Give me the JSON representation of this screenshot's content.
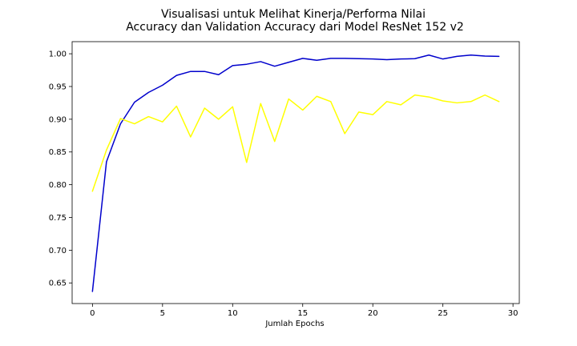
{
  "chart_data": {
    "type": "line",
    "title_lines": [
      "Visualisasi untuk Melihat Kinerja/Performa Nilai",
      "Accuracy dan Validation Accuracy dari Model ResNet 152 v2"
    ],
    "xlabel": "Jumlah Epochs",
    "ylabel": "",
    "xlim": [
      -1.45,
      30.45
    ],
    "ylim": [
      0.6185,
      1.0185
    ],
    "xticks": [
      0,
      5,
      10,
      15,
      20,
      25,
      30
    ],
    "yticks": [
      0.65,
      0.7,
      0.75,
      0.8,
      0.85,
      0.9,
      0.95,
      1.0
    ],
    "grid": false,
    "legend": "none",
    "x": [
      0,
      1,
      2,
      3,
      4,
      5,
      6,
      7,
      8,
      9,
      10,
      11,
      12,
      13,
      14,
      15,
      16,
      17,
      18,
      19,
      20,
      21,
      22,
      23,
      24,
      25,
      26,
      27,
      28,
      29
    ],
    "series": [
      {
        "color": "#0000cc",
        "values": [
          0.637,
          0.835,
          0.893,
          0.926,
          0.941,
          0.952,
          0.967,
          0.973,
          0.973,
          0.968,
          0.982,
          0.984,
          0.988,
          0.981,
          0.987,
          0.993,
          0.99,
          0.993,
          0.993,
          0.9925,
          0.992,
          0.991,
          0.992,
          0.9925,
          0.998,
          0.992,
          0.996,
          0.998,
          0.9965,
          0.996
        ]
      },
      {
        "color": "#ffff00",
        "values": [
          0.79,
          0.853,
          0.901,
          0.893,
          0.904,
          0.896,
          0.92,
          0.873,
          0.917,
          0.9,
          0.919,
          0.834,
          0.924,
          0.866,
          0.931,
          0.914,
          0.935,
          0.927,
          0.878,
          0.911,
          0.907,
          0.927,
          0.922,
          0.937,
          0.934,
          0.928,
          0.925,
          0.927,
          0.937,
          0.927
        ]
      }
    ]
  }
}
